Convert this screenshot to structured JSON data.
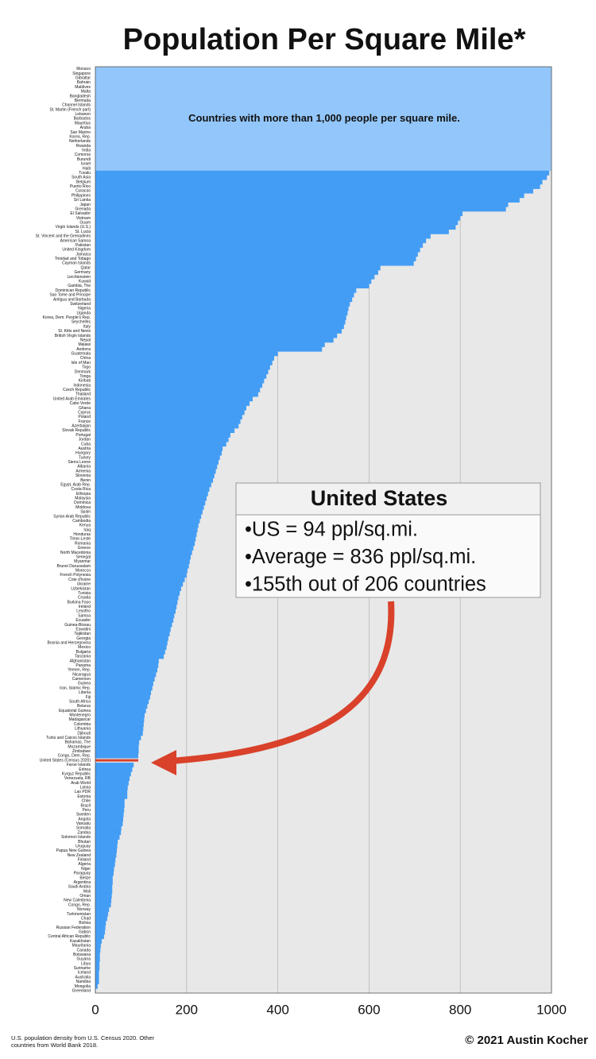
{
  "chart_data": {
    "type": "barh",
    "title": "Population Per Square Mile*",
    "annotation": "Countries with more than 1,000 people per square mile.",
    "callout": {
      "title": "United States",
      "lines": [
        "•US = 94 ppl/sq.mi.",
        "•Average = 836 ppl/sq.mi.",
        "•155th out of 206 countries"
      ]
    },
    "footnote": [
      "U.S. population density from U.S. Census 2020. Other",
      "countries from World Bank 2018."
    ],
    "credit": "© 2021 Austin Kocher",
    "color": "#439df5",
    "over_color": "#93c6fa",
    "highlight_color": "#d9412b",
    "highlight_category": "United States (Census 2020)",
    "background": "#e8e8e8",
    "grid": true,
    "xlim": [
      0,
      1000
    ],
    "xticks": [
      0,
      200,
      400,
      600,
      800,
      1000
    ],
    "categories": [
      "Monaco",
      "Singapore",
      "Gibraltar",
      "Bahrain",
      "Maldives",
      "Malta",
      "Bangladesh",
      "Bermuda",
      "Channel Islands",
      "St. Martin (French part)",
      "Lebanon",
      "Barbados",
      "Mauritius",
      "Aruba",
      "San Marino",
      "Korea, Rep.",
      "Netherlands",
      "Rwanda",
      "India",
      "Comoros",
      "Burundi",
      "Israel",
      "Haiti",
      "Tuvalu",
      "South Asia",
      "Belgium",
      "Puerto Rico",
      "Curacao",
      "Philippines",
      "Sri Lanka",
      "Japan",
      "Grenada",
      "El Salvador",
      "Vietnam",
      "Guam",
      "Virgin Islands (U.S.)",
      "St. Lucia",
      "St. Vincent and the Grenadines",
      "American Samoa",
      "Pakistan",
      "United Kingdom",
      "Jamaica",
      "Trinidad and Tobago",
      "Cayman Islands",
      "Qatar",
      "Germany",
      "Liechtenstein",
      "Kuwait",
      "Gambia, The",
      "Dominican Republic",
      "Sao Tome and Principe",
      "Antigua and Barbuda",
      "Switzerland",
      "Nigeria",
      "Uganda",
      "Korea, Dem. People's Rep.",
      "Seychelles",
      "Italy",
      "St. Kitts and Nevis",
      "British Virgin Islands",
      "Nepal",
      "Malawi",
      "Andorra",
      "Guatemala",
      "China",
      "Isle of Man",
      "Togo",
      "Denmark",
      "Tonga",
      "Kiribati",
      "Indonesia",
      "Czech Republic",
      "Thailand",
      "United Arab Emirates",
      "Cabo Verde",
      "Ghana",
      "Cyprus",
      "Poland",
      "France",
      "Azerbaijan",
      "Slovak Republic",
      "Portugal",
      "Jordan",
      "Cuba",
      "Austria",
      "Hungary",
      "Turkey",
      "Sierra Leone",
      "Albania",
      "Armenia",
      "Slovenia",
      "Benin",
      "Egypt, Arab Rep.",
      "Costa Rica",
      "Ethiopia",
      "Malaysia",
      "Dominica",
      "Moldova",
      "Spain",
      "Syrian Arab Republic",
      "Cambodia",
      "Kenya",
      "Iraq",
      "Honduras",
      "Timor-Leste",
      "Romania",
      "Greece",
      "North Macedonia",
      "Senegal",
      "Myanmar",
      "Brunei Darussalam",
      "Morocco",
      "French Polynesia",
      "Cote d'Ivoire",
      "Ukraine",
      "Uzbekistan",
      "Tunisia",
      "Croatia",
      "Burkina Faso",
      "Ireland",
      "Lesotho",
      "Samoa",
      "Ecuador",
      "Guinea-Bissau",
      "Eswatini",
      "Tajikistan",
      "Georgia",
      "Bosnia and Herzegovina",
      "Mexico",
      "Bulgaria",
      "Tanzania",
      "Afghanistan",
      "Panama",
      "Yemen, Rep.",
      "Nicaragua",
      "Cameroon",
      "Guinea",
      "Iran, Islamic Rep.",
      "Liberia",
      "Fiji",
      "South Africa",
      "Belarus",
      "Equatorial Guinea",
      "Montenegro",
      "Madagascar",
      "Colombia",
      "Lithuania",
      "Djibouti",
      "Turks and Caicos Islands",
      "Bahamas, The",
      "Mozambique",
      "Zimbabwe",
      "Congo, Dem. Rep.",
      "United States (Census 2020)",
      "Faroe Islands",
      "Eritrea",
      "Kyrgyz Republic",
      "Venezuela, RB",
      "Arab World",
      "Latvia",
      "Lao PDR",
      "Estonia",
      "Chile",
      "Brazil",
      "Peru",
      "Sweden",
      "Angola",
      "Vanuatu",
      "Somalia",
      "Zambia",
      "Solomon Islands",
      "Bhutan",
      "Uruguay",
      "Papua New Guinea",
      "New Zealand",
      "Finland",
      "Algeria",
      "Niger",
      "Paraguay",
      "Belize",
      "Argentina",
      "Saudi Arabia",
      "Mali",
      "Oman",
      "New Caledonia",
      "Congo, Rep.",
      "Norway",
      "Turkmenistan",
      "Chad",
      "Bolivia",
      "Russian Federation",
      "Gabon",
      "Central African Republic",
      "Kazakhstan",
      "Mauritania",
      "Canada",
      "Botswana",
      "Guyana",
      "Libya",
      "Suriname",
      "Iceland",
      "Australia",
      "Namibia",
      "Mongolia",
      "Greenland"
    ],
    "values": [
      1000,
      1000,
      1000,
      1000,
      1000,
      1000,
      1000,
      1000,
      1000,
      1000,
      1000,
      1000,
      1000,
      1000,
      1000,
      1000,
      1000,
      1000,
      1000,
      1000,
      1000,
      1000,
      1000,
      995,
      990,
      980,
      975,
      960,
      940,
      930,
      905,
      900,
      805,
      800,
      795,
      790,
      775,
      735,
      725,
      718,
      712,
      707,
      703,
      698,
      625,
      620,
      612,
      605,
      600,
      572,
      567,
      563,
      558,
      555,
      553,
      550,
      548,
      545,
      540,
      530,
      522,
      503,
      497,
      400,
      392,
      388,
      383,
      379,
      375,
      370,
      366,
      361,
      357,
      345,
      338,
      331,
      327,
      322,
      318,
      314,
      305,
      296,
      292,
      287,
      279,
      277,
      273,
      270,
      267,
      264,
      261,
      258,
      254,
      250,
      247,
      244,
      241,
      238,
      235,
      232,
      229,
      226,
      224,
      222,
      220,
      218,
      215,
      212,
      209,
      207,
      205,
      202,
      200,
      196,
      192,
      188,
      185,
      182,
      180,
      178,
      176,
      173,
      171,
      168,
      165,
      163,
      160,
      158,
      156,
      153,
      150,
      139,
      138,
      136,
      133,
      130,
      127,
      125,
      122,
      120,
      117,
      114,
      111,
      108,
      107,
      106,
      105,
      104,
      100,
      96,
      95,
      95,
      94,
      94,
      84,
      81,
      78,
      75,
      73,
      71,
      70,
      70,
      64,
      64,
      63,
      62,
      61,
      60,
      57,
      56,
      53,
      49,
      48,
      47,
      46,
      44,
      43,
      41,
      40,
      38,
      38,
      37,
      37,
      36,
      35,
      34,
      30,
      28,
      26,
      23,
      22,
      21,
      19,
      14,
      12,
      11,
      10,
      10,
      9,
      9,
      8,
      8,
      8,
      5,
      1
    ]
  }
}
